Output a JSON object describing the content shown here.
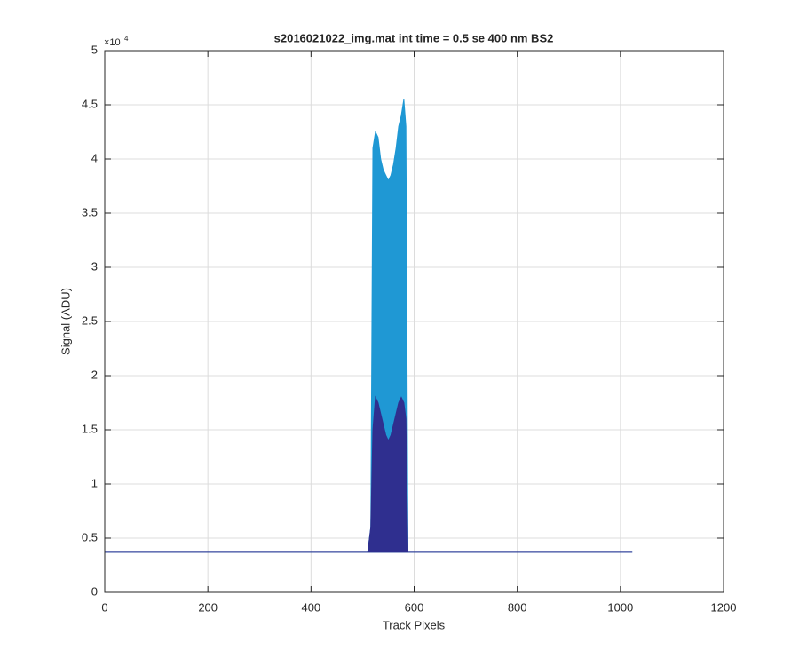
{
  "chart_data": {
    "type": "area",
    "title": "s2016021022_img.mat int time = 0.5 se  400 nm BS2",
    "x_label": "Track Pixels",
    "y_label": "Signal (ADU)",
    "y_scale_label": {
      "base": "×10",
      "exponent": "4"
    },
    "x": [
      0,
      510,
      516,
      520,
      525,
      530,
      535,
      540,
      545,
      550,
      555,
      560,
      565,
      570,
      575,
      580,
      584,
      588,
      1023
    ],
    "series": [
      {
        "color": "#1f98d4",
        "values": [
          0.37,
          0.37,
          0.6,
          4.1,
          4.25,
          4.2,
          4.0,
          3.9,
          3.85,
          3.8,
          3.85,
          3.95,
          4.1,
          4.3,
          4.4,
          4.55,
          4.3,
          0.37,
          0.37
        ]
      },
      {
        "color": "#2f2f8f",
        "values": [
          0.37,
          0.37,
          0.6,
          1.5,
          1.8,
          1.75,
          1.65,
          1.55,
          1.45,
          1.4,
          1.45,
          1.55,
          1.65,
          1.75,
          1.8,
          1.75,
          1.6,
          0.37,
          0.37
        ]
      }
    ],
    "xlim": [
      0,
      1200
    ],
    "xticks": [
      0,
      200,
      400,
      600,
      800,
      1000,
      1200
    ],
    "ylim": [
      0,
      5
    ],
    "yticks": [
      0,
      0.5,
      1,
      1.5,
      2,
      2.5,
      3,
      3.5,
      4,
      4.5,
      5
    ],
    "grid": true
  }
}
